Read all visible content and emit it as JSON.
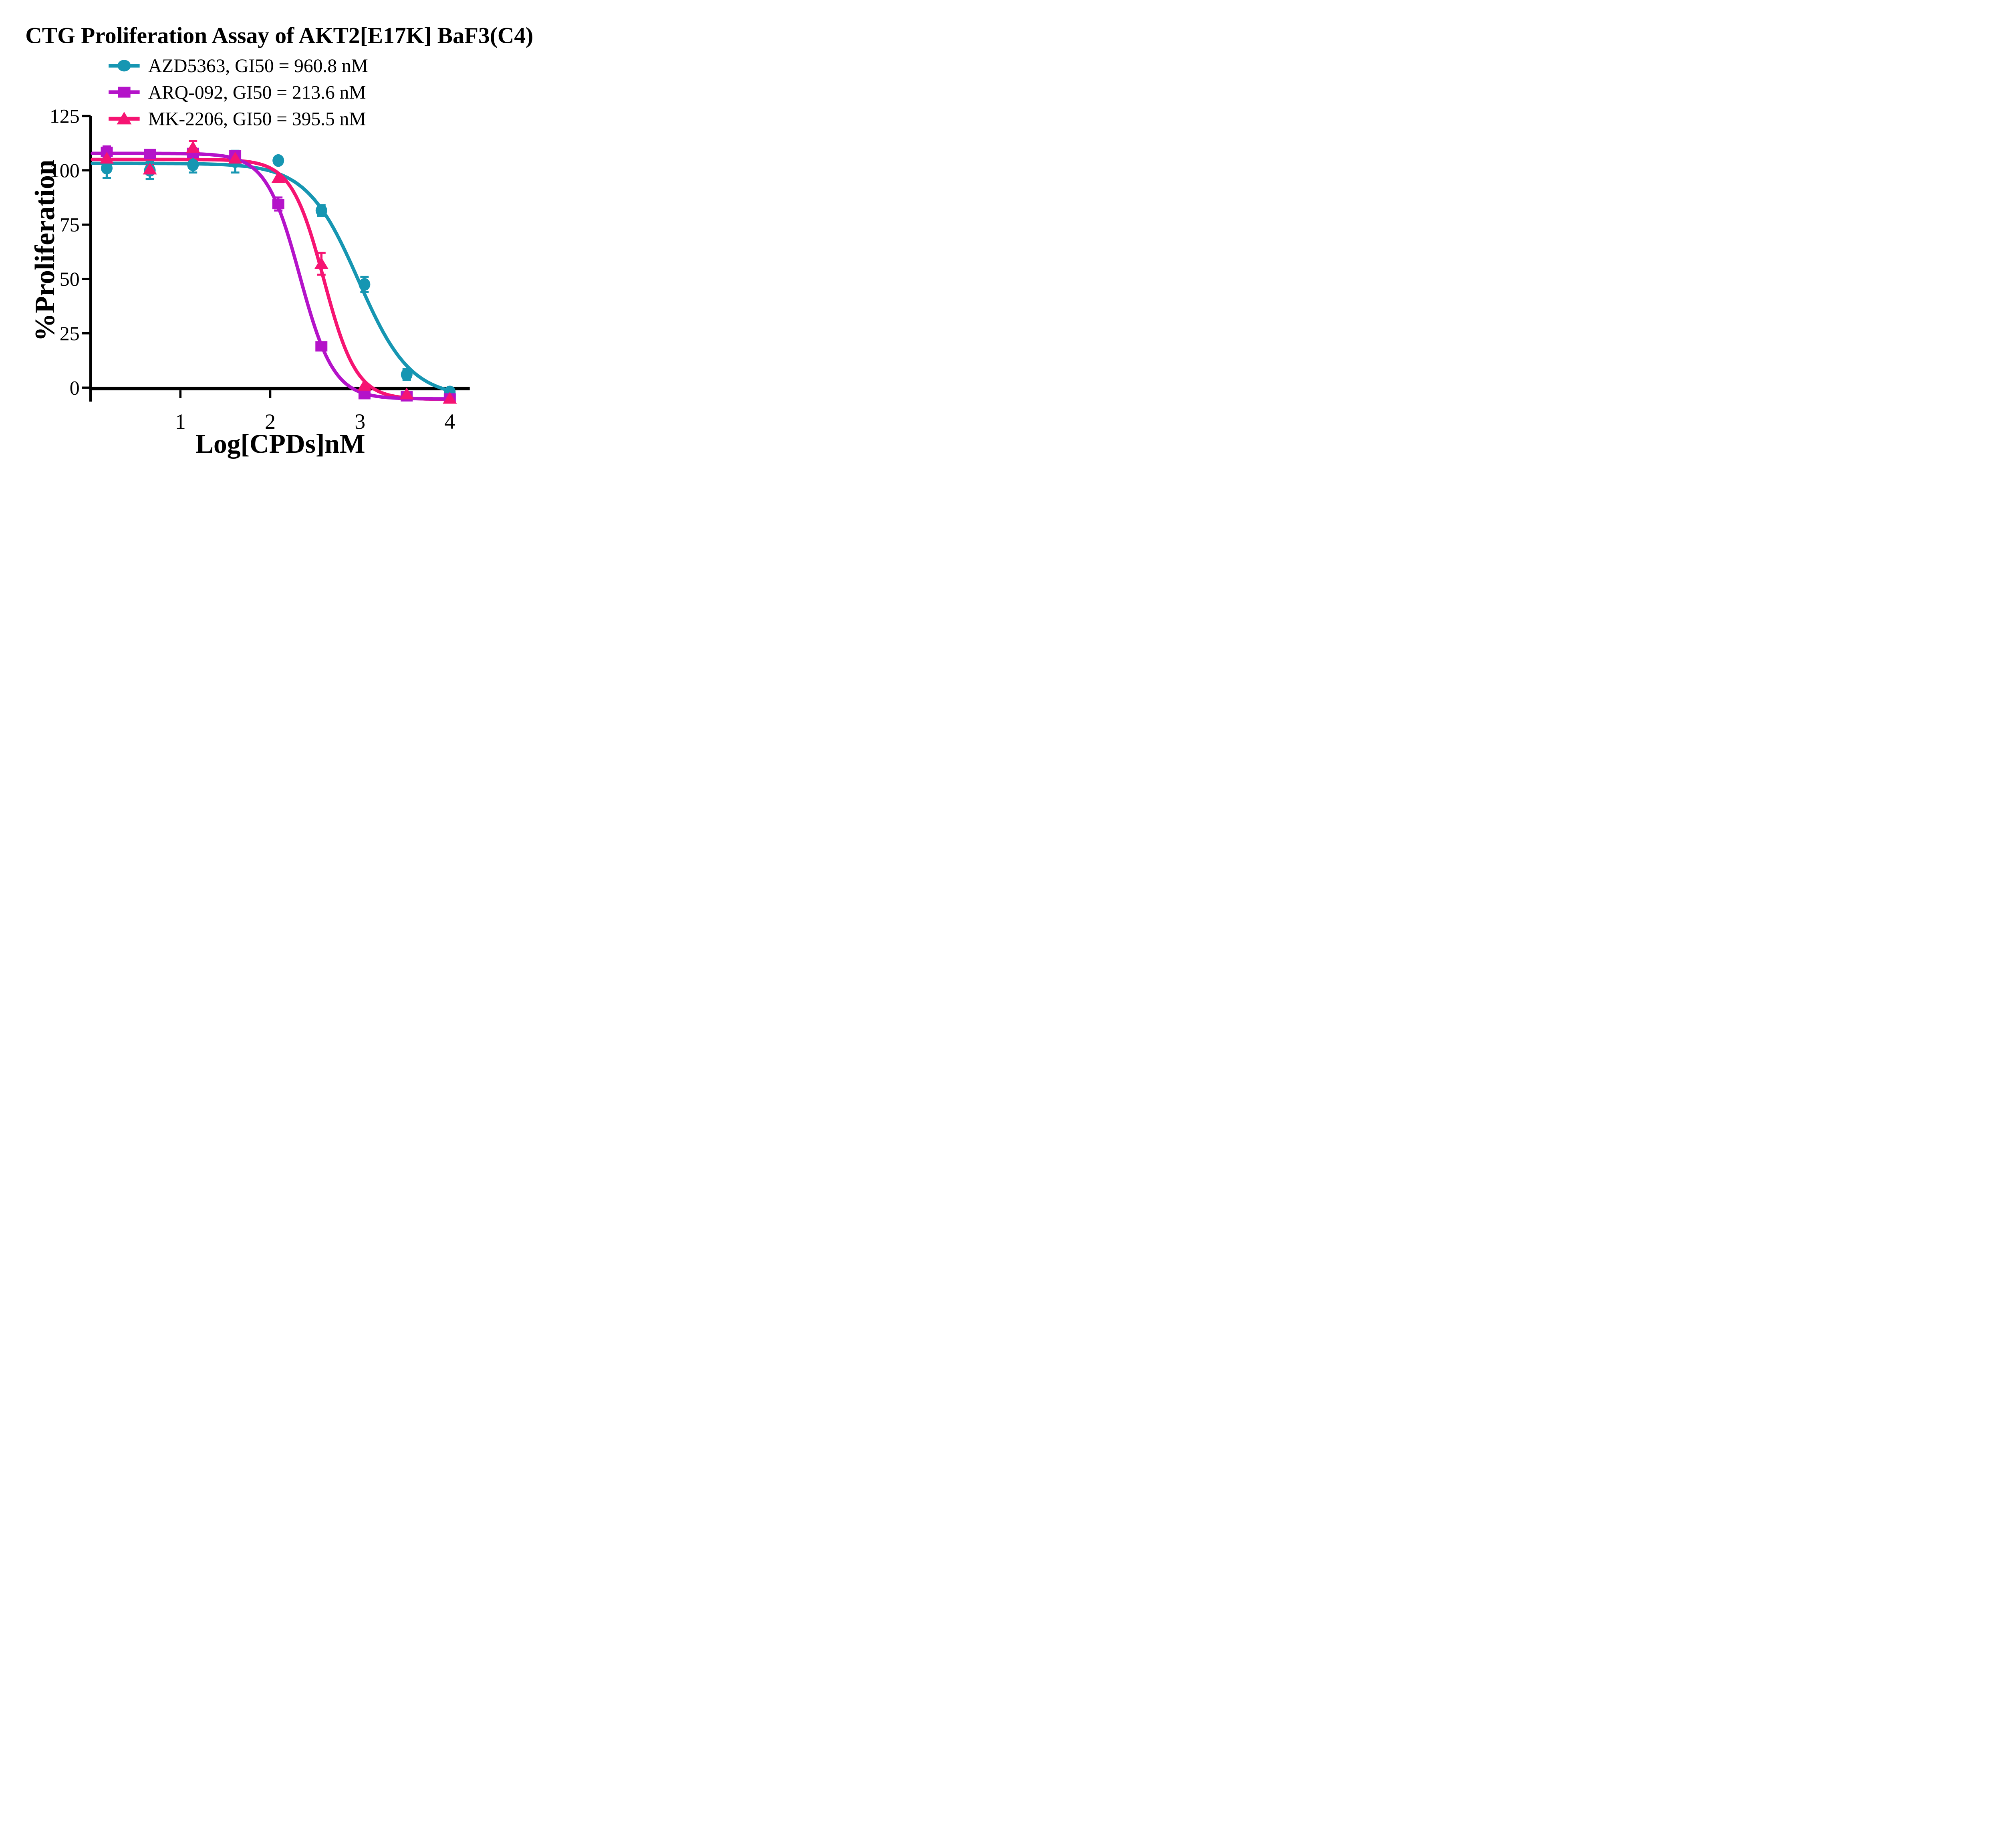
{
  "figure": {
    "title": "CTG Proliferation Assay of AKT2[E17K] BaF3(C4)",
    "background_color": "#ffffff",
    "text_color": "#000000"
  },
  "legend": {
    "position": "top-left-inside",
    "items": [
      {
        "label": "AZD5363, GI50 = 960.8 nM",
        "marker": "circle",
        "color": "#1696B2"
      },
      {
        "label": "ARQ-092, GI50 = 213.6 nM",
        "marker": "square",
        "color": "#B413C9"
      },
      {
        "label": "MK-2206, GI50 = 395.5 nM",
        "marker": "triangle",
        "color": "#F61472"
      }
    ]
  },
  "chart_data": {
    "type": "scatter",
    "subtype": "dose-response curves with error bars",
    "title": "CTG Proliferation Assay of AKT2[E17K] BaF3(C4)",
    "xlabel": "Log[CPDs]nM",
    "ylabel": "%Proliferation",
    "x_ticks": [
      1,
      2,
      3,
      4
    ],
    "y_ticks": [
      0,
      25,
      50,
      75,
      100,
      125
    ],
    "xlim": [
      0,
      4.2
    ],
    "ylim": [
      -8,
      125
    ],
    "grid": false,
    "x": [
      0.18,
      0.66,
      1.14,
      1.61,
      2.09,
      2.57,
      3.05,
      3.52,
      4.0
    ],
    "series": [
      {
        "name": "AZD5363",
        "gi50_nM": 960.8,
        "color": "#1696B2",
        "marker": "circle",
        "y": [
          101,
          100,
          102.5,
          104,
          104.5,
          81.5,
          47.5,
          6,
          -2
        ],
        "err": [
          4.5,
          4,
          3.5,
          5,
          0,
          2.5,
          3.5,
          2.5,
          0
        ],
        "fit": {
          "top": 103.2,
          "bottom": -4.5,
          "loggi50": 2.983,
          "hill": 1.5
        }
      },
      {
        "name": "ARQ-092",
        "gi50_nM": 213.6,
        "color": "#B413C9",
        "marker": "square",
        "y": [
          108.5,
          107.5,
          108,
          107,
          84.5,
          19,
          -3,
          -4,
          -5
        ],
        "err": [
          2.5,
          0,
          0,
          0,
          3,
          0,
          0,
          0,
          0
        ],
        "fit": {
          "top": 107.8,
          "bottom": -5.2,
          "loggi50": 2.33,
          "hill": 2.3
        }
      },
      {
        "name": "MK-2206",
        "gi50_nM": 395.5,
        "color": "#F61472",
        "marker": "triangle",
        "y": [
          105.5,
          100.5,
          110.5,
          105.5,
          96.5,
          57,
          1,
          -3,
          -5
        ],
        "err": [
          2.5,
          2,
          3,
          0,
          0,
          5,
          0,
          0,
          0
        ],
        "fit": {
          "top": 105.0,
          "bottom": -5.4,
          "loggi50": 2.597,
          "hill": 2.4
        }
      }
    ],
    "curve_draw_order": [
      0,
      2,
      1
    ],
    "marker_draw_order": [
      0,
      1,
      2
    ]
  }
}
